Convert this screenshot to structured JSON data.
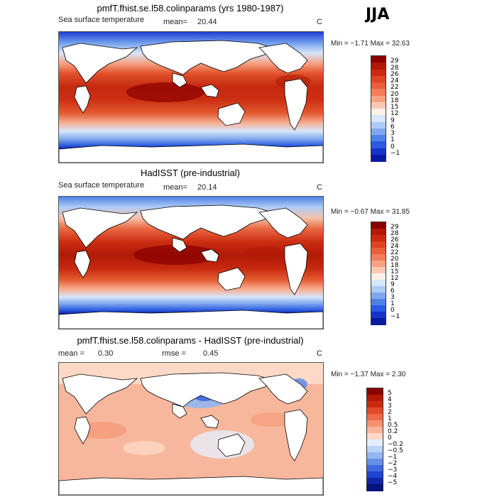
{
  "season": "JJA",
  "panels": [
    {
      "title": "pmfT.fhist.se.l58.colinparams (yrs 1980-1987)",
      "field": "Sea surface temperature",
      "mean_label": "mean=",
      "mean": "20.44",
      "units": "C",
      "minmax": "Min =  −1.71  Max =  32.63"
    },
    {
      "title": "HadISST (pre-industrial)",
      "field": "Sea surface temperature",
      "mean_label": "mean=",
      "mean": "20.14",
      "units": "C",
      "minmax": "Min =  −0.67  Max =  31.85"
    },
    {
      "title": "pmfT.fhist.se.l58.colinparams - HadISST (pre-industrial)",
      "mean_label": "mean =",
      "mean": "0.30",
      "rmse_label": "rmse =",
      "rmse": "0.45",
      "units": "C",
      "minmax": "Min =  −1.37  Max =   2.30"
    }
  ],
  "chart_data": [
    {
      "type": "heatmap",
      "title": "pmfT.fhist.se.l58.colinparams (yrs 1980-1987)",
      "variable": "Sea surface temperature",
      "units": "C",
      "mean": 20.44,
      "min": -1.71,
      "max": 32.63,
      "colorbar_levels": [
        "29",
        "28",
        "26",
        "24",
        "22",
        "20",
        "18",
        "15",
        "12",
        "9",
        "6",
        "3",
        "1",
        "0",
        "−1"
      ],
      "colorbar_colors": [
        "#8b0000",
        "#b01a06",
        "#cc2a0e",
        "#dd4420",
        "#e8603a",
        "#f27e5a",
        "#f7a283",
        "#fac9b3",
        "#fdf1e6",
        "#d6e6fb",
        "#aecbf6",
        "#7fa8ee",
        "#4f82e6",
        "#2a5ae0",
        "#1634c8",
        "#0a1aa0"
      ]
    },
    {
      "type": "heatmap",
      "title": "HadISST (pre-industrial)",
      "variable": "Sea surface temperature",
      "units": "C",
      "mean": 20.14,
      "min": -0.67,
      "max": 31.85,
      "colorbar_levels": [
        "29",
        "28",
        "26",
        "24",
        "22",
        "20",
        "18",
        "15",
        "12",
        "9",
        "6",
        "3",
        "1",
        "0",
        "−1"
      ],
      "colorbar_colors": [
        "#8b0000",
        "#b01a06",
        "#cc2a0e",
        "#dd4420",
        "#e8603a",
        "#f27e5a",
        "#f7a283",
        "#fac9b3",
        "#fdf1e6",
        "#d6e6fb",
        "#aecbf6",
        "#7fa8ee",
        "#4f82e6",
        "#2a5ae0",
        "#1634c8",
        "#0a1aa0"
      ]
    },
    {
      "type": "heatmap",
      "title": "pmfT.fhist.se.l58.colinparams - HadISST (pre-industrial)",
      "units": "C",
      "mean": 0.3,
      "rmse": 0.45,
      "min": -1.37,
      "max": 2.3,
      "colorbar_levels": [
        "5",
        "4",
        "3",
        "2",
        "1",
        "0.5",
        "0.2",
        "0",
        "−0.2",
        "−0.5",
        "−1",
        "−2",
        "−3",
        "−4",
        "−5"
      ],
      "colorbar_colors": [
        "#8b0000",
        "#b01a06",
        "#cc2a0e",
        "#e24a26",
        "#f06a48",
        "#f6906f",
        "#f9b59b",
        "#fcd8c6",
        "#e6eefb",
        "#bcd4f6",
        "#93b6f0",
        "#6890e8",
        "#3e68e0",
        "#1f44d0",
        "#1026a8",
        "#06137e"
      ]
    }
  ]
}
